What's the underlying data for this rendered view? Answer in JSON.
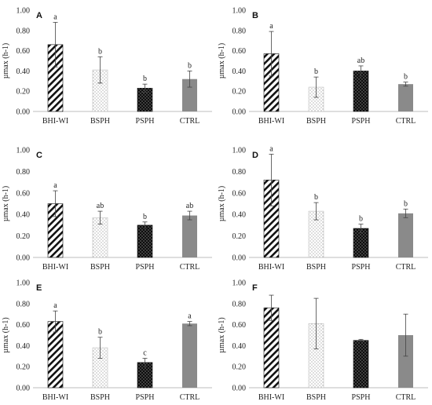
{
  "chart_data": [
    {
      "type": "bar",
      "panel": "A",
      "categories": [
        "BHI-WI",
        "BSPH",
        "PSPH",
        "CTRL"
      ],
      "values": [
        0.66,
        0.41,
        0.23,
        0.32
      ],
      "errors": [
        0.22,
        0.13,
        0.04,
        0.08
      ],
      "significance": [
        "a",
        "b",
        "b",
        "b"
      ],
      "ylabel": "µmax (h-1)",
      "ylim": [
        0,
        1.0
      ],
      "yticks": [
        "0.00",
        "0.20",
        "0.40",
        "0.60",
        "0.80",
        "1.00"
      ]
    },
    {
      "type": "bar",
      "panel": "B",
      "categories": [
        "BHI-WI",
        "BSPH",
        "PSPH",
        "CTRL"
      ],
      "values": [
        0.57,
        0.24,
        0.4,
        0.27
      ],
      "errors": [
        0.22,
        0.1,
        0.05,
        0.02
      ],
      "significance": [
        "a",
        "b",
        "ab",
        "b"
      ],
      "ylabel": "µmax (h-1)",
      "ylim": [
        0,
        1.0
      ],
      "yticks": [
        "0.00",
        "0.20",
        "0.40",
        "0.60",
        "0.80",
        "1.00"
      ]
    },
    {
      "type": "bar",
      "panel": "C",
      "categories": [
        "BHI-WI",
        "BSPH",
        "PSPH",
        "CTRL"
      ],
      "values": [
        0.5,
        0.37,
        0.3,
        0.39
      ],
      "errors": [
        0.12,
        0.06,
        0.03,
        0.04
      ],
      "significance": [
        "a",
        "ab",
        "b",
        "ab"
      ],
      "ylabel": "µmax (h-1)",
      "ylim": [
        0,
        1.0
      ],
      "yticks": [
        "0.00",
        "0.20",
        "0.40",
        "0.60",
        "0.80",
        "1.00"
      ]
    },
    {
      "type": "bar",
      "panel": "D",
      "categories": [
        "BHI-WI",
        "BSPH",
        "PSPH",
        "CTRL"
      ],
      "values": [
        0.72,
        0.43,
        0.27,
        0.41
      ],
      "errors": [
        0.24,
        0.08,
        0.04,
        0.04
      ],
      "significance": [
        "a",
        "b",
        "b",
        "b"
      ],
      "ylabel": "µmax (h-1)",
      "ylim": [
        0,
        1.0
      ],
      "yticks": [
        "0.00",
        "0.20",
        "0.40",
        "0.60",
        "0.80",
        "1.00"
      ]
    },
    {
      "type": "bar",
      "panel": "E",
      "categories": [
        "BHI-WI",
        "BSPH",
        "PSPH",
        "CTRL"
      ],
      "values": [
        0.63,
        0.38,
        0.24,
        0.61
      ],
      "errors": [
        0.1,
        0.1,
        0.04,
        0.02
      ],
      "significance": [
        "a",
        "b",
        "c",
        "a"
      ],
      "ylabel": "µmax (h-1)",
      "ylim": [
        0,
        1.0
      ],
      "yticks": [
        "0.00",
        "0.20",
        "0.40",
        "0.60",
        "0.80",
        "1.00"
      ]
    },
    {
      "type": "bar",
      "panel": "F",
      "categories": [
        "BHI-WI",
        "BSPH",
        "PSPH",
        "CTRL"
      ],
      "values": [
        0.76,
        0.61,
        0.45,
        0.5
      ],
      "errors": [
        0.12,
        0.24,
        0.01,
        0.2
      ],
      "significance": [
        "",
        "",
        "",
        ""
      ],
      "ylabel": "µmax (h-1)",
      "ylim": [
        0,
        1.0
      ],
      "yticks": [
        "0.00",
        "0.20",
        "0.40",
        "0.60",
        "0.80",
        "1.00"
      ]
    }
  ],
  "bar_styles": [
    {
      "pattern": "diag-hatch",
      "color": "#111111"
    },
    {
      "pattern": "dots-light",
      "color": "#9a9a9a"
    },
    {
      "pattern": "dots-dark",
      "color": "#111111"
    },
    {
      "pattern": "solid",
      "color": "#808080"
    }
  ]
}
